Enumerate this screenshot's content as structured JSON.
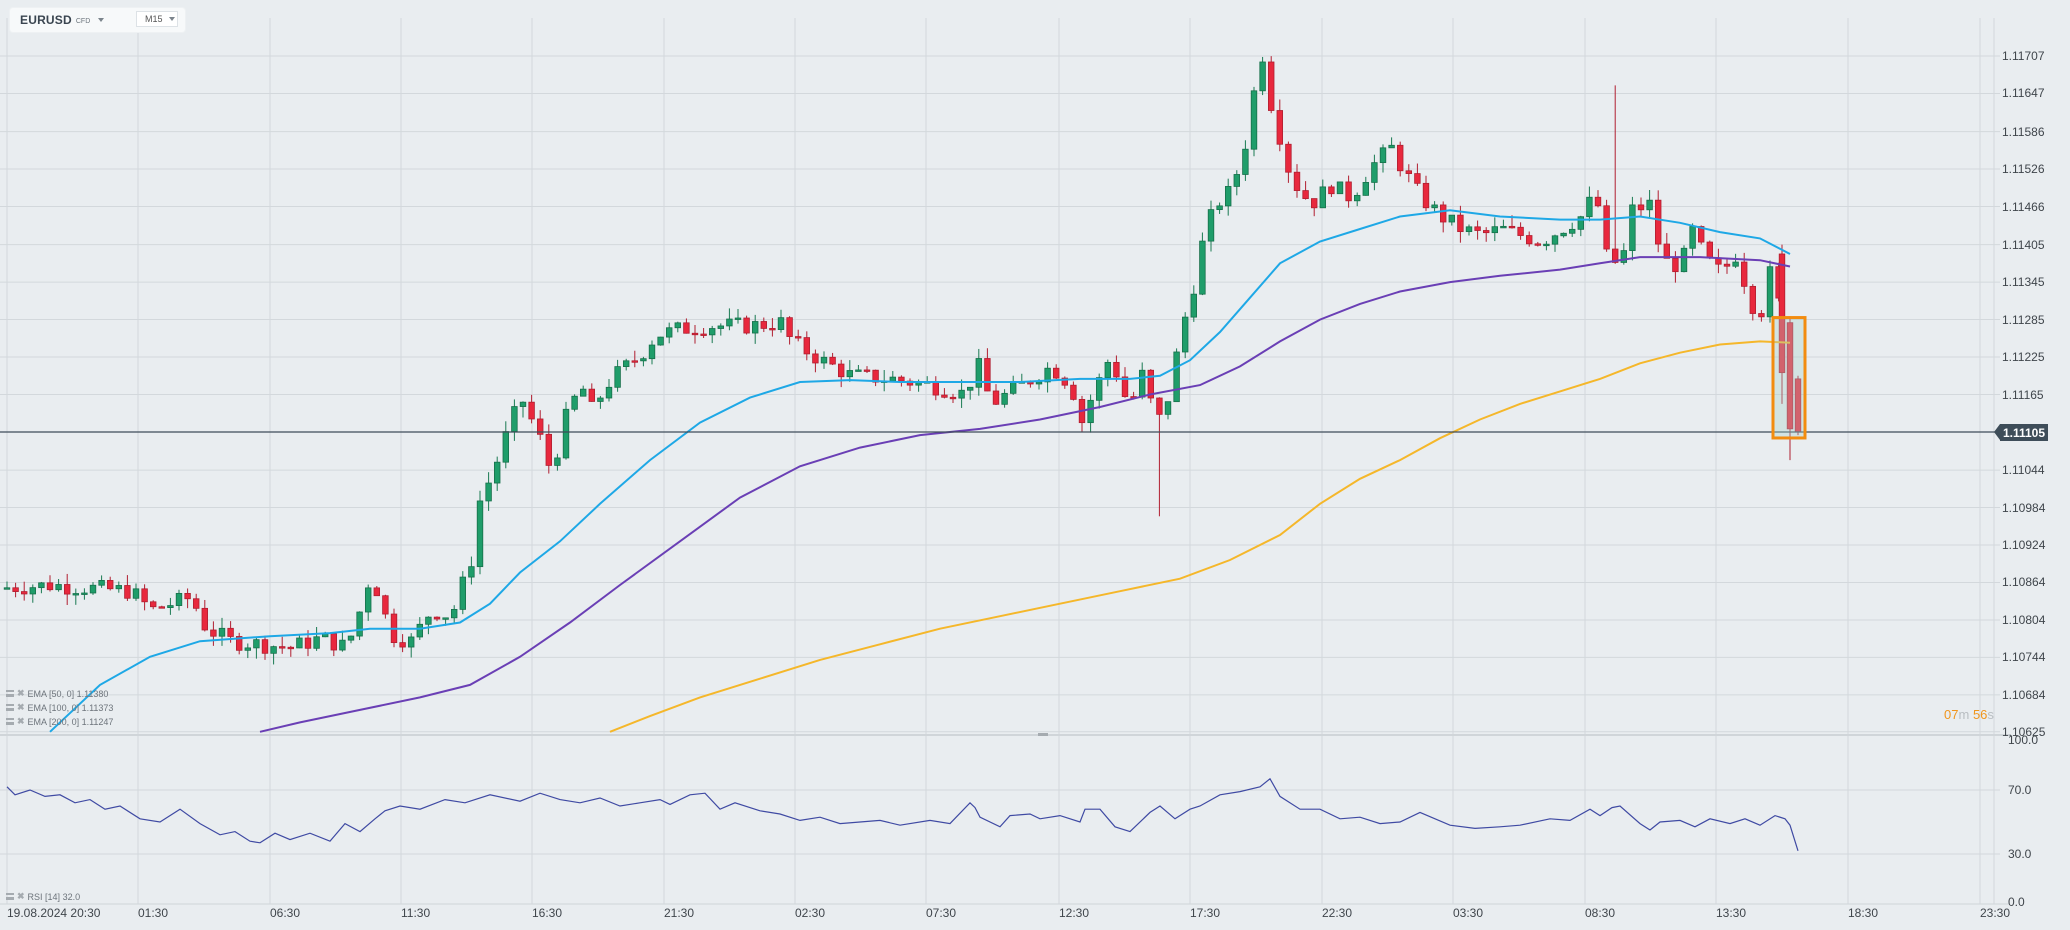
{
  "header": {
    "symbol": "EURUSD",
    "instrument_type": "CFD",
    "timeframe": "M15"
  },
  "indicators": {
    "ema50": {
      "label": "EMA  [50,  0]  1.11380",
      "color": "#1ea8e6"
    },
    "ema100": {
      "label": "EMA  [100,  0]  1.11373",
      "color": "#6a3fb5"
    },
    "ema200": {
      "label": "EMA  [200,  0]  1.11247",
      "color": "#f5b72a"
    },
    "rsi": {
      "label": "RSI  [14]  32.0",
      "color": "#3f4aa3"
    }
  },
  "price_axis": {
    "ticks": [
      "1.11707",
      "1.11647",
      "1.11586",
      "1.11526",
      "1.11466",
      "1.11405",
      "1.11345",
      "1.11285",
      "1.11225",
      "1.11165",
      "1.11044",
      "1.10984",
      "1.10924",
      "1.10864",
      "1.10804",
      "1.10744",
      "1.10684",
      "1.10625"
    ],
    "current_price": "1.11105"
  },
  "rsi_axis": {
    "ticks": [
      "100.0",
      "70.0",
      "30.0",
      "0.0"
    ]
  },
  "time_axis": {
    "labels": [
      "19.08.2024  20:30",
      "01:30",
      "06:30",
      "11:30",
      "16:30",
      "21:30",
      "02:30",
      "07:30",
      "12:30",
      "17:30",
      "22:30",
      "03:30",
      "08:30",
      "13:30",
      "18:30",
      "23:30"
    ]
  },
  "countdown": {
    "minutes": "07",
    "minutes_unit": "m",
    "seconds": "56",
    "seconds_unit": "s"
  },
  "colors": {
    "up": "#1f9d6a",
    "down": "#e8283d",
    "highlight": "#f28c0f",
    "price_line": "#3e4d59"
  },
  "chart_data": {
    "type": "candlestick",
    "title": "EURUSD CFD M15",
    "x_labels": [
      "19.08.2024 20:30",
      "01:30",
      "06:30",
      "11:30",
      "16:30",
      "21:30",
      "02:30",
      "07:30",
      "12:30",
      "17:30",
      "22:30",
      "03:30",
      "08:30",
      "13:30",
      "18:30",
      "23:30"
    ],
    "ylim": [
      1.10625,
      1.11767
    ],
    "current_price": 1.11105,
    "approx_close_path": [
      {
        "time": "20:30",
        "close": 1.10855
      },
      {
        "time": "01:30",
        "close": 1.10845
      },
      {
        "time": "04:00",
        "close": 1.1079
      },
      {
        "time": "06:30",
        "close": 1.10765
      },
      {
        "time": "09:00",
        "close": 1.1077
      },
      {
        "time": "11:30",
        "close": 1.1078
      },
      {
        "time": "14:00",
        "close": 1.1092
      },
      {
        "time": "15:30",
        "close": 1.1105
      },
      {
        "time": "16:30",
        "close": 1.1114
      },
      {
        "time": "19:00",
        "close": 1.112
      },
      {
        "time": "21:30",
        "close": 1.1128
      },
      {
        "time": "02:30",
        "close": 1.1125
      },
      {
        "time": "05:00",
        "close": 1.11195
      },
      {
        "time": "07:30",
        "close": 1.11185
      },
      {
        "time": "12:30",
        "close": 1.1116
      },
      {
        "time": "15:00",
        "close": 1.1125
      },
      {
        "time": "17:30",
        "close": 1.1143
      },
      {
        "time": "19:00",
        "close": 1.1174
      },
      {
        "time": "20:30",
        "close": 1.1151
      },
      {
        "time": "22:30",
        "close": 1.1148
      },
      {
        "time": "01:00",
        "close": 1.1153
      },
      {
        "time": "03:30",
        "close": 1.1143
      },
      {
        "time": "06:00",
        "close": 1.1142
      },
      {
        "time": "08:30",
        "close": 1.115
      },
      {
        "time": "11:00",
        "close": 1.1136
      },
      {
        "time": "13:30",
        "close": 1.114
      },
      {
        "time": "14:30",
        "close": 1.11105
      }
    ],
    "series": [
      {
        "name": "EMA 50",
        "last": 1.1138
      },
      {
        "name": "EMA 100",
        "last": 1.11373
      },
      {
        "name": "EMA 200",
        "last": 1.11247
      }
    ],
    "rsi": {
      "period": 14,
      "last": 32.0,
      "levels": [
        30,
        70
      ],
      "range": [
        0,
        100
      ]
    },
    "annotations": [
      "Orange highlight box around last two bearish candles (1.11285 → 1.11105)",
      "Countdown 07m 56s"
    ]
  }
}
